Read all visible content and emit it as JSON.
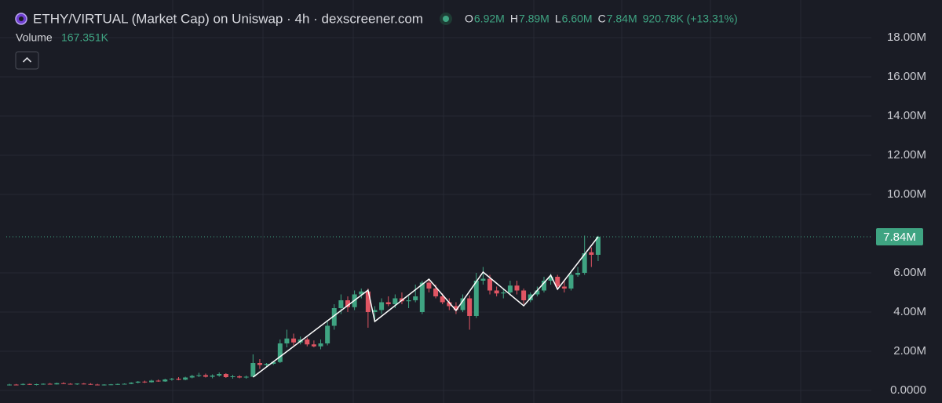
{
  "chart_data": {
    "type": "candlestick",
    "title": "ETHY/VIRTUAL (Market Cap) on Uniswap · 4h · dexscreener.com",
    "ohlc_legend": [
      {
        "key": "O",
        "value": "6.92M"
      },
      {
        "key": "H",
        "value": "7.89M"
      },
      {
        "key": "L",
        "value": "6.60M"
      },
      {
        "key": "C",
        "value": "7.84M"
      }
    ],
    "change": "920.78K (+13.31%)",
    "volume_label": "Volume",
    "volume_value": "167.351K",
    "up_color": "#3fa482",
    "down_color": "#e05563",
    "grid": true,
    "ylim": [
      -0.64,
      19.92
    ],
    "yticks": [
      {
        "value": 0,
        "label": "0.0000"
      },
      {
        "value": 2,
        "label": "2.00M"
      },
      {
        "value": 4,
        "label": "4.00M"
      },
      {
        "value": 6,
        "label": "6.00M"
      },
      {
        "value": 10,
        "label": "10.00M"
      },
      {
        "value": 12,
        "label": "12.00M"
      },
      {
        "value": 14,
        "label": "14.00M"
      },
      {
        "value": 16,
        "label": "16.00M"
      },
      {
        "value": 18,
        "label": "18.00M"
      }
    ],
    "last_price": {
      "value": 7.84,
      "label": "7.84M"
    },
    "open": [
      0.28,
      0.3,
      0.29,
      0.33,
      0.3,
      0.32,
      0.34,
      0.31,
      0.37,
      0.34,
      0.32,
      0.35,
      0.33,
      0.3,
      0.28,
      0.3,
      0.31,
      0.33,
      0.34,
      0.4,
      0.45,
      0.42,
      0.5,
      0.46,
      0.56,
      0.6,
      0.55,
      0.66,
      0.74,
      0.78,
      0.7,
      0.76,
      0.84,
      0.68,
      0.72,
      0.66,
      0.7,
      1.4,
      1.3,
      1.36,
      1.45,
      2.4,
      2.65,
      2.45,
      2.6,
      2.35,
      2.25,
      2.4,
      3.3,
      4.2,
      4.6,
      4.25,
      4.9,
      5.05,
      4.0,
      4.1,
      4.5,
      4.4,
      4.7,
      4.55,
      4.6,
      4.0,
      5.5,
      5.2,
      4.8,
      4.5,
      4.3,
      4.1,
      4.7,
      3.8,
      5.6,
      5.7,
      5.1,
      4.95,
      5.0,
      5.35,
      5.1,
      4.6,
      4.9,
      5.1,
      5.6,
      5.8,
      5.3,
      5.2,
      5.9,
      6.0,
      7.05,
      6.92
    ],
    "high": [
      0.34,
      0.33,
      0.36,
      0.35,
      0.34,
      0.36,
      0.38,
      0.4,
      0.42,
      0.37,
      0.36,
      0.38,
      0.37,
      0.34,
      0.32,
      0.33,
      0.35,
      0.36,
      0.42,
      0.48,
      0.5,
      0.55,
      0.56,
      0.6,
      0.64,
      0.68,
      0.7,
      0.8,
      0.9,
      0.86,
      0.82,
      0.92,
      0.88,
      0.8,
      0.78,
      0.76,
      1.84,
      1.6,
      1.4,
      1.5,
      2.6,
      3.1,
      2.9,
      2.75,
      2.7,
      2.55,
      2.6,
      3.6,
      4.4,
      4.9,
      4.8,
      5.1,
      5.2,
      5.2,
      4.3,
      4.7,
      4.8,
      4.9,
      5.0,
      4.8,
      5.4,
      5.6,
      5.7,
      5.4,
      4.95,
      4.7,
      4.5,
      4.9,
      4.85,
      6.0,
      6.3,
      5.9,
      5.3,
      5.2,
      5.6,
      5.6,
      5.2,
      5.0,
      5.3,
      5.8,
      5.95,
      5.9,
      5.6,
      6.1,
      6.3,
      7.9,
      7.3,
      7.89
    ],
    "low": [
      0.25,
      0.27,
      0.27,
      0.28,
      0.26,
      0.29,
      0.3,
      0.3,
      0.33,
      0.3,
      0.28,
      0.31,
      0.29,
      0.26,
      0.25,
      0.27,
      0.28,
      0.3,
      0.32,
      0.36,
      0.38,
      0.4,
      0.44,
      0.44,
      0.5,
      0.52,
      0.52,
      0.62,
      0.68,
      0.66,
      0.62,
      0.7,
      0.64,
      0.6,
      0.62,
      0.6,
      0.68,
      1.1,
      1.2,
      1.3,
      1.4,
      2.2,
      2.3,
      2.35,
      2.25,
      2.2,
      2.1,
      2.3,
      3.1,
      3.9,
      4.0,
      4.1,
      4.7,
      3.2,
      3.5,
      3.9,
      4.3,
      4.2,
      4.4,
      4.2,
      4.5,
      3.9,
      5.0,
      4.7,
      4.4,
      4.1,
      3.9,
      4.0,
      3.1,
      3.7,
      5.4,
      4.9,
      4.8,
      4.7,
      4.85,
      4.9,
      4.4,
      4.5,
      4.8,
      5.0,
      5.4,
      5.2,
      5.0,
      5.1,
      5.8,
      5.9,
      6.3,
      6.6
    ],
    "close": [
      0.3,
      0.29,
      0.33,
      0.3,
      0.32,
      0.34,
      0.31,
      0.37,
      0.34,
      0.32,
      0.35,
      0.33,
      0.3,
      0.28,
      0.3,
      0.31,
      0.33,
      0.34,
      0.4,
      0.45,
      0.42,
      0.5,
      0.46,
      0.56,
      0.6,
      0.55,
      0.66,
      0.74,
      0.78,
      0.7,
      0.76,
      0.84,
      0.68,
      0.72,
      0.66,
      0.7,
      1.4,
      1.3,
      1.36,
      1.45,
      2.4,
      2.65,
      2.45,
      2.6,
      2.35,
      2.25,
      2.4,
      3.3,
      4.2,
      4.6,
      4.25,
      4.9,
      5.05,
      4.0,
      4.1,
      4.5,
      4.4,
      4.7,
      4.55,
      4.6,
      4.8,
      5.5,
      5.2,
      4.8,
      4.5,
      4.3,
      4.1,
      4.7,
      3.8,
      5.6,
      5.7,
      5.1,
      4.95,
      5.0,
      5.35,
      5.1,
      4.6,
      4.9,
      5.1,
      5.6,
      5.8,
      5.3,
      5.2,
      5.9,
      6.0,
      7.0,
      6.92,
      7.84
    ],
    "zigzag": {
      "color": "#ffffff",
      "x": [
        36,
        53,
        54,
        62,
        66,
        70,
        76,
        80,
        81,
        87
      ],
      "values": [
        0.68,
        5.12,
        3.52,
        5.68,
        4.08,
        6.04,
        4.32,
        5.88,
        5.16,
        7.84
      ]
    }
  }
}
